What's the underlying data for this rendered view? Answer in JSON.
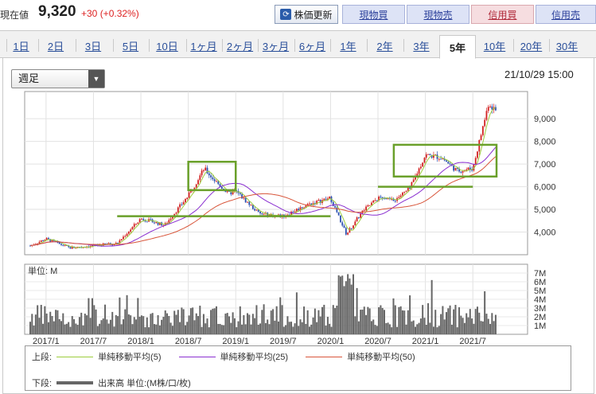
{
  "header": {
    "price_label": "現在値",
    "price": "9,320",
    "change": "+30 (+0.32%)",
    "refresh_label": "株価更新",
    "buttons": {
      "buy_genbutsu": "現物買",
      "sell_genbutsu": "現物売",
      "buy_shinyou": "信用買",
      "sell_shinyou": "信用売"
    }
  },
  "tabs": [
    "1日",
    "2日",
    "3日",
    "5日",
    "10日",
    "1ヶ月",
    "2ヶ月",
    "3ヶ月",
    "6ヶ月",
    "1年",
    "2年",
    "3年",
    "5年",
    "10年",
    "20年",
    "30年"
  ],
  "active_tab": "5年",
  "select": {
    "value": "週足"
  },
  "timestamp": "21/10/29 15:00",
  "colors": {
    "candle_up": "#d22020",
    "candle_down": "#2a4fb0",
    "ma5": "#9ccc3c",
    "ma25": "#8a2fd0",
    "ma50": "#d8553a",
    "annotation": "#6aa02a",
    "volume": "#666666"
  },
  "chart_data": {
    "type": "line",
    "x": [
      "2016/11",
      "2017/1",
      "2017/4",
      "2017/7",
      "2017/10",
      "2018/1",
      "2018/4",
      "2018/7",
      "2018/9",
      "2018/10",
      "2018/12",
      "2019/1",
      "2019/4",
      "2019/7",
      "2019/10",
      "2020/1",
      "2020/3",
      "2020/5",
      "2020/7",
      "2020/9",
      "2020/11",
      "2021/1",
      "2021/3",
      "2021/5",
      "2021/7",
      "2021/9",
      "2021/10"
    ],
    "series": [
      {
        "values": [
          3400,
          3700,
          3300,
          3400,
          3500,
          4600,
          4300,
          5600,
          6800,
          6400,
          5700,
          5800,
          4800,
          4700,
          5200,
          5500,
          3900,
          4900,
          5500,
          5400,
          5900,
          7400,
          7300,
          6700,
          6800,
          9700,
          9320
        ]
      }
    ],
    "xlabel": "",
    "ylabel": "",
    "ylim": [
      3000,
      10200
    ],
    "y_ticks": [
      "4,000",
      "5,000",
      "6,000",
      "7,000",
      "8,000",
      "9,000"
    ],
    "x_ticks": [
      "2017/1",
      "2017/7",
      "2018/1",
      "2018/7",
      "2019/1",
      "2019/7",
      "2020/1",
      "2020/7",
      "2021/1",
      "2021/7"
    ],
    "volume": {
      "unit_label": "単位: M",
      "ylim": [
        0,
        8
      ],
      "y_ticks": [
        "1M",
        "2M",
        "3M",
        "4M",
        "5M",
        "6M",
        "7M"
      ]
    },
    "annotations": [
      {
        "type": "box",
        "x_from": "2018/7",
        "x_to": "2019/1",
        "y_from": 5850,
        "y_to": 7100
      },
      {
        "type": "line",
        "x_from": "2017/10",
        "x_to": "2020/1",
        "y": 4700
      },
      {
        "type": "line",
        "x_from": "2020/7",
        "x_to": "2021/7",
        "y": 6000
      },
      {
        "type": "box",
        "x_from": "2020/9",
        "x_to": "2021/10",
        "y_from": 6450,
        "y_to": 7850
      }
    ]
  },
  "legend": {
    "upper_label": "上段:",
    "ma5": "単純移動平均(5)",
    "ma25": "単純移動平均(25)",
    "ma50": "単純移動平均(50)",
    "lower_label": "下段:",
    "volume": "出来高 単位:(M株/口/枚)"
  }
}
